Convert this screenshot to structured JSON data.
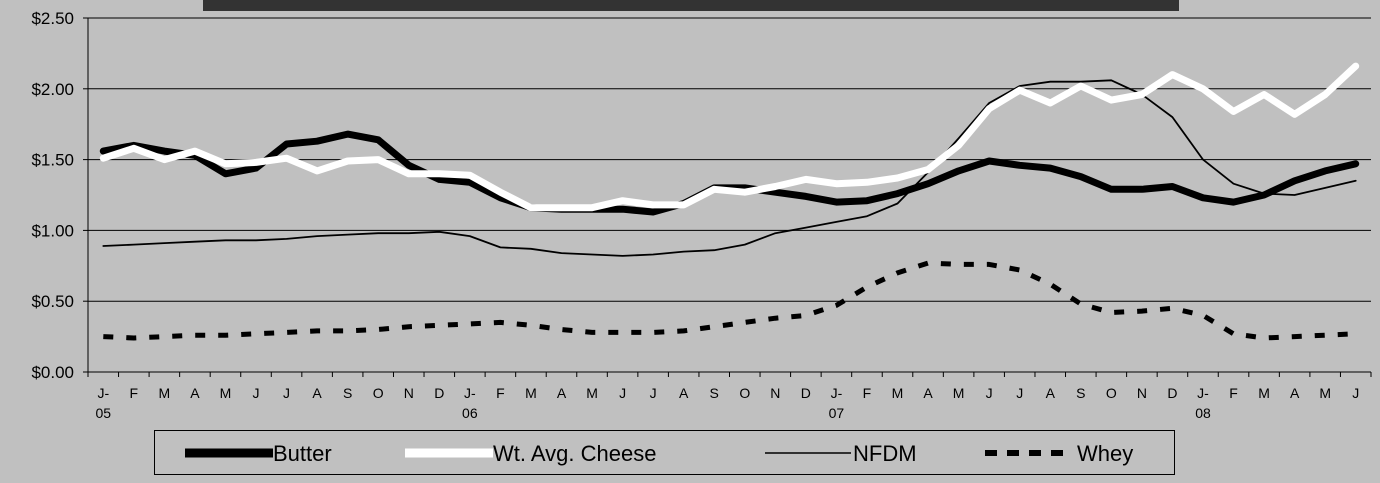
{
  "chart_data": {
    "type": "line",
    "y_ticks": [
      "$0.00",
      "$0.50",
      "$1.00",
      "$1.50",
      "$2.00",
      "$2.50"
    ],
    "ylim": [
      0,
      2.5
    ],
    "x_labels": [
      [
        "J-",
        "05"
      ],
      [
        "F"
      ],
      [
        "M"
      ],
      [
        "A"
      ],
      [
        "M"
      ],
      [
        "J"
      ],
      [
        "J"
      ],
      [
        "A"
      ],
      [
        "S"
      ],
      [
        "O"
      ],
      [
        "N"
      ],
      [
        "D"
      ],
      [
        "J-",
        "06"
      ],
      [
        "F"
      ],
      [
        "M"
      ],
      [
        "A"
      ],
      [
        "M"
      ],
      [
        "J"
      ],
      [
        "J"
      ],
      [
        "A"
      ],
      [
        "S"
      ],
      [
        "O"
      ],
      [
        "N"
      ],
      [
        "D"
      ],
      [
        "J-",
        "07"
      ],
      [
        "F"
      ],
      [
        "M"
      ],
      [
        "A"
      ],
      [
        "M"
      ],
      [
        "J"
      ],
      [
        "J"
      ],
      [
        "A"
      ],
      [
        "S"
      ],
      [
        "O"
      ],
      [
        "N"
      ],
      [
        "D"
      ],
      [
        "J-",
        "08"
      ],
      [
        "F"
      ],
      [
        "M"
      ],
      [
        "A"
      ],
      [
        "M"
      ],
      [
        "J"
      ]
    ],
    "grid": "horizontal",
    "legend_position": "bottom",
    "series": [
      {
        "name": "Butter",
        "color": "#000000",
        "style": "thick",
        "values": [
          1.56,
          1.6,
          1.56,
          1.53,
          1.4,
          1.44,
          1.61,
          1.63,
          1.68,
          1.64,
          1.46,
          1.36,
          1.34,
          1.23,
          1.16,
          1.15,
          1.15,
          1.15,
          1.13,
          1.19,
          1.3,
          1.3,
          1.27,
          1.24,
          1.2,
          1.21,
          1.26,
          1.33,
          1.42,
          1.49,
          1.46,
          1.44,
          1.38,
          1.29,
          1.29,
          1.31,
          1.23,
          1.2,
          1.25,
          1.35,
          1.42,
          1.47
        ]
      },
      {
        "name": "Wt. Avg. Cheese",
        "color": "#ffffff",
        "style": "thick",
        "values": [
          1.51,
          1.58,
          1.5,
          1.56,
          1.47,
          1.48,
          1.51,
          1.42,
          1.49,
          1.5,
          1.4,
          1.4,
          1.39,
          1.27,
          1.16,
          1.16,
          1.16,
          1.21,
          1.18,
          1.18,
          1.29,
          1.27,
          1.31,
          1.36,
          1.33,
          1.34,
          1.37,
          1.43,
          1.6,
          1.86,
          1.99,
          1.9,
          2.02,
          1.92,
          1.96,
          2.1,
          2.0,
          1.84,
          1.96,
          1.82,
          1.96,
          2.16
        ]
      },
      {
        "name": "NFDM",
        "color": "#000000",
        "style": "thin",
        "values": [
          0.89,
          0.9,
          0.91,
          0.92,
          0.93,
          0.93,
          0.94,
          0.96,
          0.97,
          0.98,
          0.98,
          0.99,
          0.96,
          0.88,
          0.87,
          0.84,
          0.83,
          0.82,
          0.83,
          0.85,
          0.86,
          0.9,
          0.98,
          1.02,
          1.06,
          1.1,
          1.19,
          1.41,
          1.65,
          1.9,
          2.02,
          2.05,
          2.05,
          2.06,
          1.96,
          1.8,
          1.5,
          1.33,
          1.26,
          1.25,
          1.3,
          1.35
        ]
      },
      {
        "name": "Whey",
        "color": "#000000",
        "style": "dashed",
        "values": [
          0.25,
          0.24,
          0.25,
          0.26,
          0.26,
          0.27,
          0.28,
          0.29,
          0.29,
          0.3,
          0.32,
          0.33,
          0.34,
          0.35,
          0.33,
          0.3,
          0.28,
          0.28,
          0.28,
          0.29,
          0.32,
          0.35,
          0.38,
          0.4,
          0.47,
          0.6,
          0.7,
          0.77,
          0.76,
          0.76,
          0.72,
          0.62,
          0.48,
          0.42,
          0.43,
          0.45,
          0.4,
          0.27,
          0.24,
          0.25,
          0.26,
          0.27
        ]
      }
    ]
  }
}
